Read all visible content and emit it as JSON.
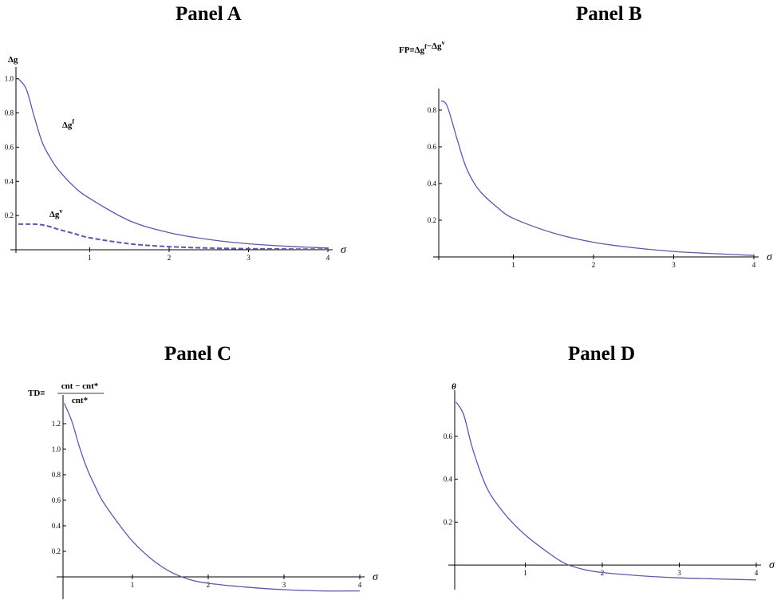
{
  "panels": {
    "a": {
      "title": "Panel A"
    },
    "b": {
      "title": "Panel B"
    },
    "c": {
      "title": "Panel C"
    },
    "d": {
      "title": "Panel D"
    }
  },
  "colors": {
    "curve": "#5a5aa6",
    "axis": "#000000"
  },
  "chart_data": [
    {
      "type": "line",
      "title": "Panel A",
      "xlabel": "σ",
      "ylabel": "Δg",
      "xlim": [
        0,
        4
      ],
      "ylim": [
        0,
        1.05
      ],
      "x_ticks": [
        1,
        2,
        3,
        4
      ],
      "y_ticks": [
        0.2,
        0.4,
        0.6,
        0.8,
        1.0
      ],
      "y_tick_labels": [
        "0.2",
        "0.4",
        "0.6",
        "0.8",
        "1.0"
      ],
      "grid": false,
      "series": [
        {
          "name": "Δg^f",
          "style": "solid",
          "x": [
            0.1,
            0.2,
            0.3,
            0.4,
            0.5,
            0.6,
            0.8,
            1.0,
            1.5,
            2.0,
            2.5,
            3.0,
            3.5,
            4.0
          ],
          "y": [
            1.0,
            0.94,
            0.78,
            0.63,
            0.54,
            0.47,
            0.37,
            0.3,
            0.17,
            0.1,
            0.06,
            0.035,
            0.02,
            0.01
          ]
        },
        {
          "name": "Δg^v",
          "style": "dashed",
          "x": [
            0.1,
            0.2,
            0.3,
            0.4,
            0.5,
            0.6,
            0.8,
            1.0,
            1.5,
            2.0,
            2.5,
            3.0,
            3.5,
            4.0
          ],
          "y": [
            0.15,
            0.15,
            0.15,
            0.145,
            0.135,
            0.12,
            0.095,
            0.07,
            0.035,
            0.018,
            0.01,
            0.006,
            0.004,
            0.003
          ]
        }
      ]
    },
    {
      "type": "line",
      "title": "Panel B",
      "xlabel": "σ",
      "ylabel": "FP≡Δg^f−Δg^v",
      "xlim": [
        0,
        4
      ],
      "ylim": [
        0,
        0.9
      ],
      "x_ticks": [
        1,
        2,
        3,
        4
      ],
      "y_ticks": [
        0.2,
        0.4,
        0.6,
        0.8
      ],
      "y_tick_labels": [
        "0.2",
        "0.4",
        "0.6",
        "0.8"
      ],
      "grid": false,
      "series": [
        {
          "style": "solid",
          "x": [
            0.1,
            0.15,
            0.2,
            0.3,
            0.4,
            0.5,
            0.6,
            0.8,
            1.0,
            1.5,
            2.0,
            2.5,
            3.0,
            3.5,
            4.0
          ],
          "y": [
            0.85,
            0.84,
            0.79,
            0.64,
            0.5,
            0.41,
            0.35,
            0.27,
            0.21,
            0.13,
            0.08,
            0.05,
            0.03,
            0.018,
            0.008
          ]
        }
      ]
    },
    {
      "type": "line",
      "title": "Panel C",
      "xlabel": "σ",
      "ylabel": "TD≡",
      "ylabel_numerator": "cnt − cnt*",
      "ylabel_denominator": "cnt*",
      "xlim": [
        0,
        4
      ],
      "ylim": [
        -0.15,
        1.4
      ],
      "x_ticks": [
        1,
        2,
        3,
        4
      ],
      "y_ticks": [
        0.2,
        0.4,
        0.6,
        0.8,
        1.0,
        1.2
      ],
      "y_tick_labels": [
        "0.2",
        "0.4",
        "0.6",
        "0.8",
        "1.0",
        "1.2"
      ],
      "grid": false,
      "series": [
        {
          "style": "solid",
          "x": [
            0.1,
            0.2,
            0.3,
            0.4,
            0.5,
            0.6,
            0.8,
            1.0,
            1.25,
            1.5,
            1.75,
            2.0,
            2.5,
            3.0,
            3.5,
            4.0
          ],
          "y": [
            1.36,
            1.22,
            1.02,
            0.85,
            0.72,
            0.6,
            0.43,
            0.28,
            0.14,
            0.04,
            -0.02,
            -0.05,
            -0.08,
            -0.1,
            -0.11,
            -0.11
          ]
        }
      ]
    },
    {
      "type": "line",
      "title": "Panel D",
      "xlabel": "σ",
      "ylabel": "θ",
      "xlim": [
        0,
        4
      ],
      "ylim": [
        -0.1,
        0.8
      ],
      "x_ticks": [
        1,
        2,
        3,
        4
      ],
      "y_ticks": [
        0.2,
        0.4,
        0.6
      ],
      "y_tick_labels": [
        "0.2",
        "0.4",
        "0.6"
      ],
      "grid": false,
      "series": [
        {
          "style": "solid",
          "x": [
            0.1,
            0.2,
            0.3,
            0.4,
            0.5,
            0.6,
            0.8,
            1.0,
            1.25,
            1.5,
            1.75,
            2.0,
            2.5,
            3.0,
            3.5,
            4.0
          ],
          "y": [
            0.76,
            0.7,
            0.56,
            0.45,
            0.36,
            0.3,
            0.21,
            0.14,
            0.07,
            0.01,
            -0.02,
            -0.035,
            -0.05,
            -0.06,
            -0.065,
            -0.07
          ]
        }
      ]
    }
  ]
}
